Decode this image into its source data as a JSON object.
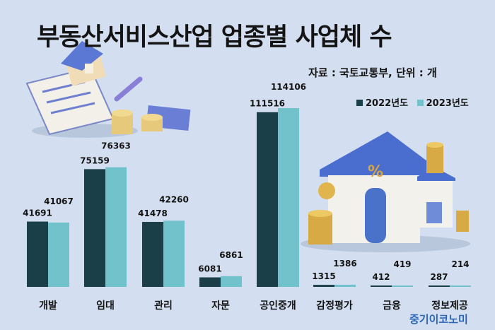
{
  "title": "부동산서비스산업 업종별 사업체 수",
  "source": "자료 : 국토교통부, 단위 : 개",
  "brand": "중기이코노미",
  "colors": {
    "s2022": "#1a3f49",
    "s2023": "#72c2cc",
    "background": "#d3dff0"
  },
  "chart_data": {
    "type": "bar",
    "title": "부동산서비스산업 업종별 사업체 수",
    "ylabel": "",
    "xlabel": "",
    "ylim": [
      0,
      120000
    ],
    "grid": false,
    "legend_position": "top-right",
    "categories": [
      "개발",
      "임대",
      "관리",
      "자문",
      "공인중개",
      "감정평가",
      "금융",
      "정보제공"
    ],
    "series": [
      {
        "name": "2022년도",
        "values": [
          41691,
          75159,
          41478,
          6081,
          111516,
          1315,
          412,
          287
        ]
      },
      {
        "name": "2023년도",
        "values": [
          41067,
          76363,
          42260,
          6861,
          114106,
          1386,
          419,
          214
        ]
      }
    ]
  }
}
